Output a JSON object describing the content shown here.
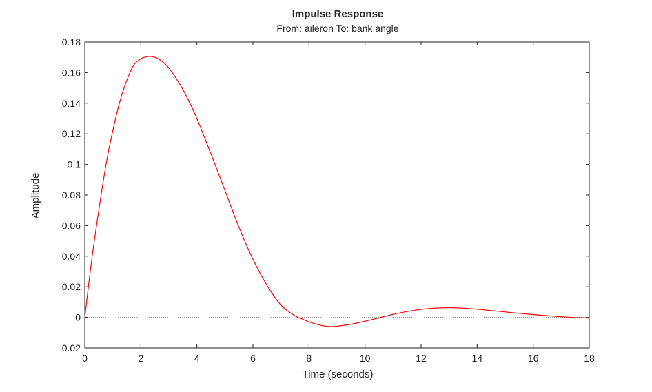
{
  "chart_data": {
    "type": "line",
    "title": "Impulse Response",
    "subtitle": "From: aileron  To: bank angle",
    "xlabel": "Time (seconds)",
    "ylabel": "Amplitude",
    "xlim": [
      0,
      18
    ],
    "ylim": [
      -0.02,
      0.18
    ],
    "xticks": [
      0,
      2,
      4,
      6,
      8,
      10,
      12,
      14,
      16,
      18
    ],
    "xtick_labels": [
      "0",
      "2",
      "4",
      "6",
      "8",
      "10",
      "12",
      "14",
      "16",
      "18"
    ],
    "yticks": [
      -0.02,
      0,
      0.02,
      0.04,
      0.06,
      0.08,
      0.1,
      0.12,
      0.14,
      0.16,
      0.18
    ],
    "ytick_labels": [
      "-0.02",
      "0",
      "0.02",
      "0.04",
      "0.06",
      "0.08",
      "0.1",
      "0.12",
      "0.14",
      "0.16",
      "0.18"
    ],
    "grid": false,
    "reference_line": {
      "y": 0,
      "style": "dotted",
      "color": "#888888"
    },
    "series": [
      {
        "color": "#ff0000",
        "x": [
          0,
          0.25,
          0.5,
          0.75,
          1,
          1.25,
          1.5,
          1.75,
          2,
          2.25,
          2.5,
          2.75,
          3,
          3.25,
          3.5,
          3.75,
          4,
          4.5,
          5,
          5.5,
          6,
          6.5,
          7,
          7.5,
          7.75,
          8,
          8.5,
          8.8,
          9,
          9.5,
          10,
          10.5,
          11,
          11.5,
          12,
          12.5,
          13,
          13.5,
          14,
          14.5,
          15,
          15.5,
          16,
          16.5,
          17,
          17.5,
          18
        ],
        "y": [
          0,
          0.038,
          0.07,
          0.099,
          0.122,
          0.141,
          0.155,
          0.165,
          0.169,
          0.1705,
          0.17,
          0.1675,
          0.163,
          0.1565,
          0.149,
          0.14,
          0.13,
          0.107,
          0.083,
          0.059,
          0.038,
          0.021,
          0.008,
          0.001,
          -0.001,
          -0.003,
          -0.0055,
          -0.006,
          -0.0058,
          -0.0045,
          -0.0025,
          -0.0003,
          0.002,
          0.0038,
          0.0052,
          0.006,
          0.0063,
          0.006,
          0.0053,
          0.0044,
          0.0035,
          0.0026,
          0.0018,
          0.0011,
          0.0004,
          -0.0001,
          -0.0004
        ]
      }
    ]
  }
}
